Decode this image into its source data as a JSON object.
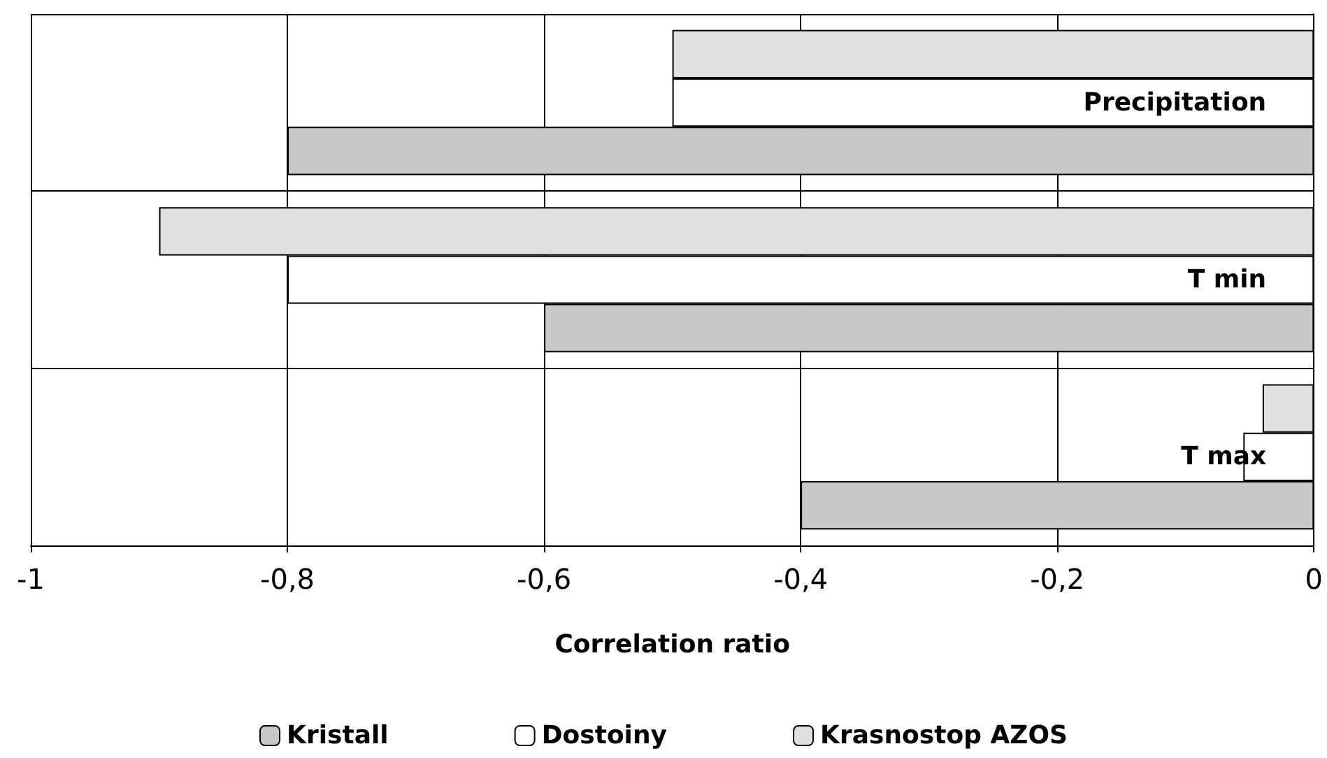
{
  "chart_data": {
    "type": "bar",
    "orientation": "horizontal",
    "xlabel": "Correlation ratio",
    "categories": [
      "Precipitation",
      "T min",
      "T max"
    ],
    "series": [
      {
        "name": "Kristall",
        "color": "#c8c8c8",
        "values": [
          -0.8,
          -0.6,
          -0.4
        ]
      },
      {
        "name": "Dostoiny",
        "color": "#ffffff",
        "values": [
          -0.5,
          -0.8,
          -0.055
        ]
      },
      {
        "name": "Krasnostop AZOS",
        "color": "#e0e0e0",
        "values": [
          -0.5,
          -0.9,
          -0.04
        ]
      }
    ],
    "xlim": [
      -1,
      0
    ],
    "xticks": [
      {
        "value": -1,
        "label": "-1"
      },
      {
        "value": -0.8,
        "label": "-0,8"
      },
      {
        "value": -0.6,
        "label": "-0,6"
      },
      {
        "value": -0.4,
        "label": "-0,4"
      },
      {
        "value": -0.2,
        "label": "-0,2"
      },
      {
        "value": 0,
        "label": "0"
      }
    ],
    "grid": true,
    "legend": "bottom"
  }
}
